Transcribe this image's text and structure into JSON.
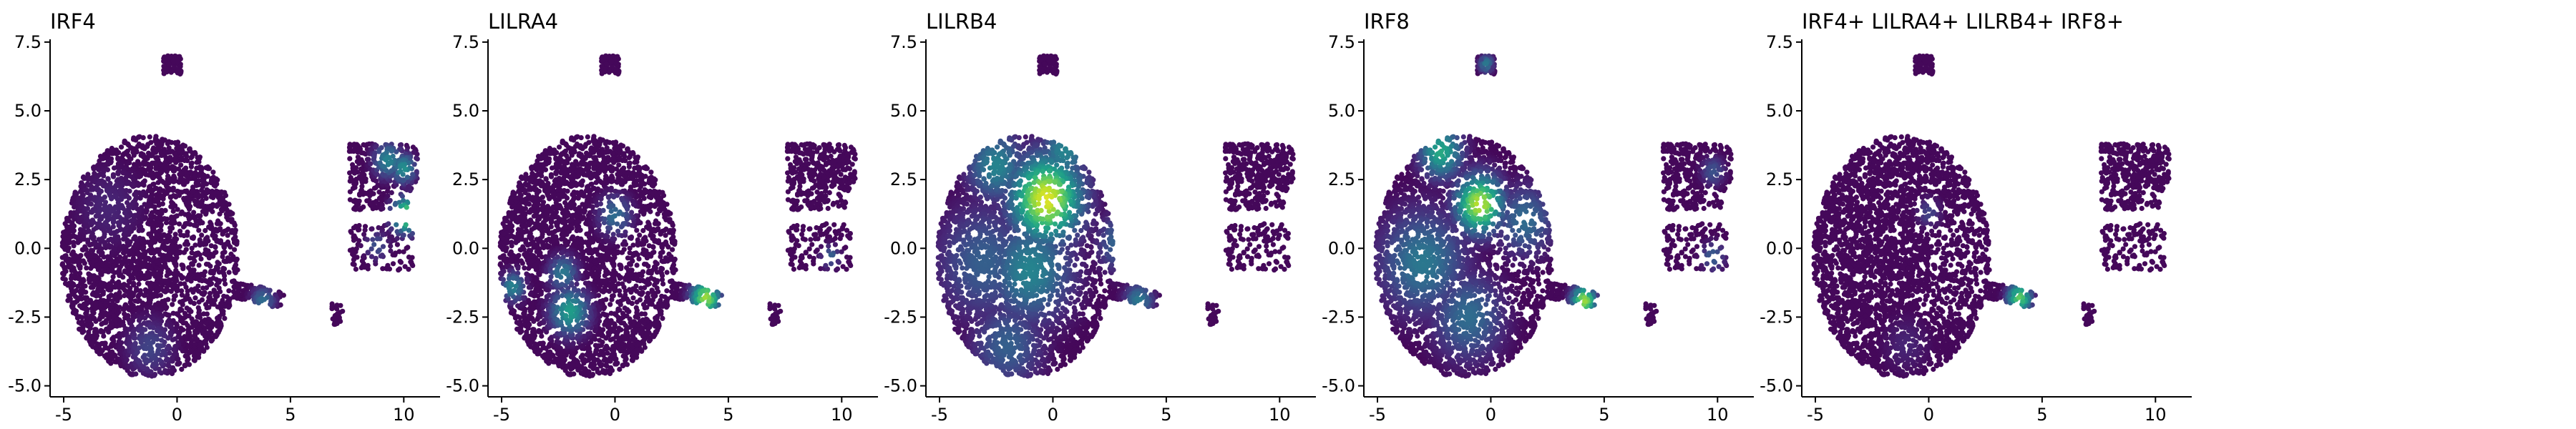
{
  "chart_data": [
    {
      "type": "scatter",
      "title": "IRF4",
      "xlabel": "",
      "ylabel": "",
      "xlim": [
        -5.6,
        11.6
      ],
      "ylim": [
        -5.4,
        7.6
      ],
      "xticks": [
        "-5",
        "0",
        "5",
        "10"
      ],
      "yticks": [
        "-5.0",
        "-2.5",
        "0.0",
        "2.5",
        "5.0",
        "7.5"
      ],
      "colormap": "viridis",
      "hotspots": [
        {
          "x": 10.1,
          "y": 1.2,
          "r": 0.6,
          "v": 0.85
        },
        {
          "x": 9.3,
          "y": 3.2,
          "r": 0.6,
          "v": 0.45
        },
        {
          "x": 10.0,
          "y": 2.9,
          "r": 0.5,
          "v": 0.5
        },
        {
          "x": 3.8,
          "y": -1.9,
          "r": 0.5,
          "v": 0.35
        },
        {
          "x": -1.2,
          "y": -3.6,
          "r": 1.0,
          "v": 0.2
        },
        {
          "x": 8.8,
          "y": 0.1,
          "r": 0.5,
          "v": 0.25
        },
        {
          "x": -3.0,
          "y": 1.5,
          "r": 1.5,
          "v": 0.1
        }
      ]
    },
    {
      "type": "scatter",
      "title": "LILRA4",
      "xlabel": "",
      "ylabel": "",
      "xlim": [
        -5.6,
        11.6
      ],
      "ylim": [
        -5.4,
        7.6
      ],
      "xticks": [
        "-5",
        "0",
        "5",
        "10"
      ],
      "yticks": [
        "-5.0",
        "-2.5",
        "0.0",
        "2.5",
        "5.0",
        "7.5"
      ],
      "colormap": "viridis",
      "hotspots": [
        {
          "x": 4.0,
          "y": -1.8,
          "r": 0.6,
          "v": 0.85
        },
        {
          "x": -2.0,
          "y": -2.3,
          "r": 0.8,
          "v": 0.55
        },
        {
          "x": -4.5,
          "y": -1.4,
          "r": 0.5,
          "v": 0.45
        },
        {
          "x": -2.3,
          "y": -0.9,
          "r": 0.6,
          "v": 0.4
        },
        {
          "x": 0.0,
          "y": 1.2,
          "r": 0.7,
          "v": 0.35
        },
        {
          "x": 9.5,
          "y": -0.3,
          "r": 0.4,
          "v": 0.3
        }
      ]
    },
    {
      "type": "scatter",
      "title": "LILRB4",
      "xlabel": "",
      "ylabel": "",
      "xlim": [
        -5.6,
        11.6
      ],
      "ylim": [
        -5.4,
        7.6
      ],
      "xticks": [
        "-5",
        "0",
        "5",
        "10"
      ],
      "yticks": [
        "-5.0",
        "-2.5",
        "0.0",
        "2.5",
        "5.0",
        "7.5"
      ],
      "colormap": "viridis",
      "hotspots": [
        {
          "x": -0.3,
          "y": 1.8,
          "r": 1.5,
          "v": 0.95
        },
        {
          "x": -2.5,
          "y": 3.0,
          "r": 1.2,
          "v": 0.45
        },
        {
          "x": -1.0,
          "y": -0.8,
          "r": 1.8,
          "v": 0.45
        },
        {
          "x": -3.0,
          "y": -0.5,
          "r": 2.0,
          "v": 0.3
        },
        {
          "x": 3.0,
          "y": 0.2,
          "r": 1.0,
          "v": 0.35
        },
        {
          "x": -2.0,
          "y": -3.5,
          "r": 1.5,
          "v": 0.3
        },
        {
          "x": 0.5,
          "y": 3.5,
          "r": 1.0,
          "v": 0.45
        },
        {
          "x": 3.8,
          "y": -1.9,
          "r": 0.6,
          "v": 0.4
        }
      ]
    },
    {
      "type": "scatter",
      "title": "IRF8",
      "xlabel": "",
      "ylabel": "",
      "xlim": [
        -5.6,
        11.6
      ],
      "ylim": [
        -5.4,
        7.6
      ],
      "xticks": [
        "-5",
        "0",
        "5",
        "10"
      ],
      "yticks": [
        "-5.0",
        "-2.5",
        "0.0",
        "2.5",
        "5.0",
        "7.5"
      ],
      "colormap": "viridis",
      "hotspots": [
        {
          "x": -0.5,
          "y": 1.6,
          "r": 1.0,
          "v": 0.9
        },
        {
          "x": 4.1,
          "y": -1.9,
          "r": 0.5,
          "v": 0.85
        },
        {
          "x": -2.2,
          "y": 3.5,
          "r": 0.9,
          "v": 0.6
        },
        {
          "x": -3.0,
          "y": -0.5,
          "r": 1.8,
          "v": 0.4
        },
        {
          "x": -1.0,
          "y": -2.5,
          "r": 1.5,
          "v": 0.35
        },
        {
          "x": 1.5,
          "y": 1.0,
          "r": 1.2,
          "v": 0.35
        },
        {
          "x": 9.8,
          "y": -0.3,
          "r": 0.5,
          "v": 0.3
        },
        {
          "x": 9.8,
          "y": 2.8,
          "r": 0.5,
          "v": 0.25
        },
        {
          "x": -0.2,
          "y": 6.7,
          "r": 0.3,
          "v": 0.4
        }
      ]
    },
    {
      "type": "scatter",
      "title": "IRF4+ LILRA4+ LILRB4+ IRF8+",
      "xlabel": "",
      "ylabel": "",
      "xlim": [
        -5.6,
        11.6
      ],
      "ylim": [
        -5.4,
        7.6
      ],
      "xticks": [
        "-5",
        "0",
        "5",
        "10"
      ],
      "yticks": [
        "-5.0",
        "-2.5",
        "0.0",
        "2.5",
        "5.0",
        "7.5"
      ],
      "colormap": "viridis",
      "hotspots": [
        {
          "x": 4.0,
          "y": -1.8,
          "r": 0.5,
          "v": 0.75
        },
        {
          "x": 0.0,
          "y": 1.3,
          "r": 0.5,
          "v": 0.2
        },
        {
          "x": -1.0,
          "y": -3.5,
          "r": 1.0,
          "v": 0.1
        }
      ]
    }
  ]
}
